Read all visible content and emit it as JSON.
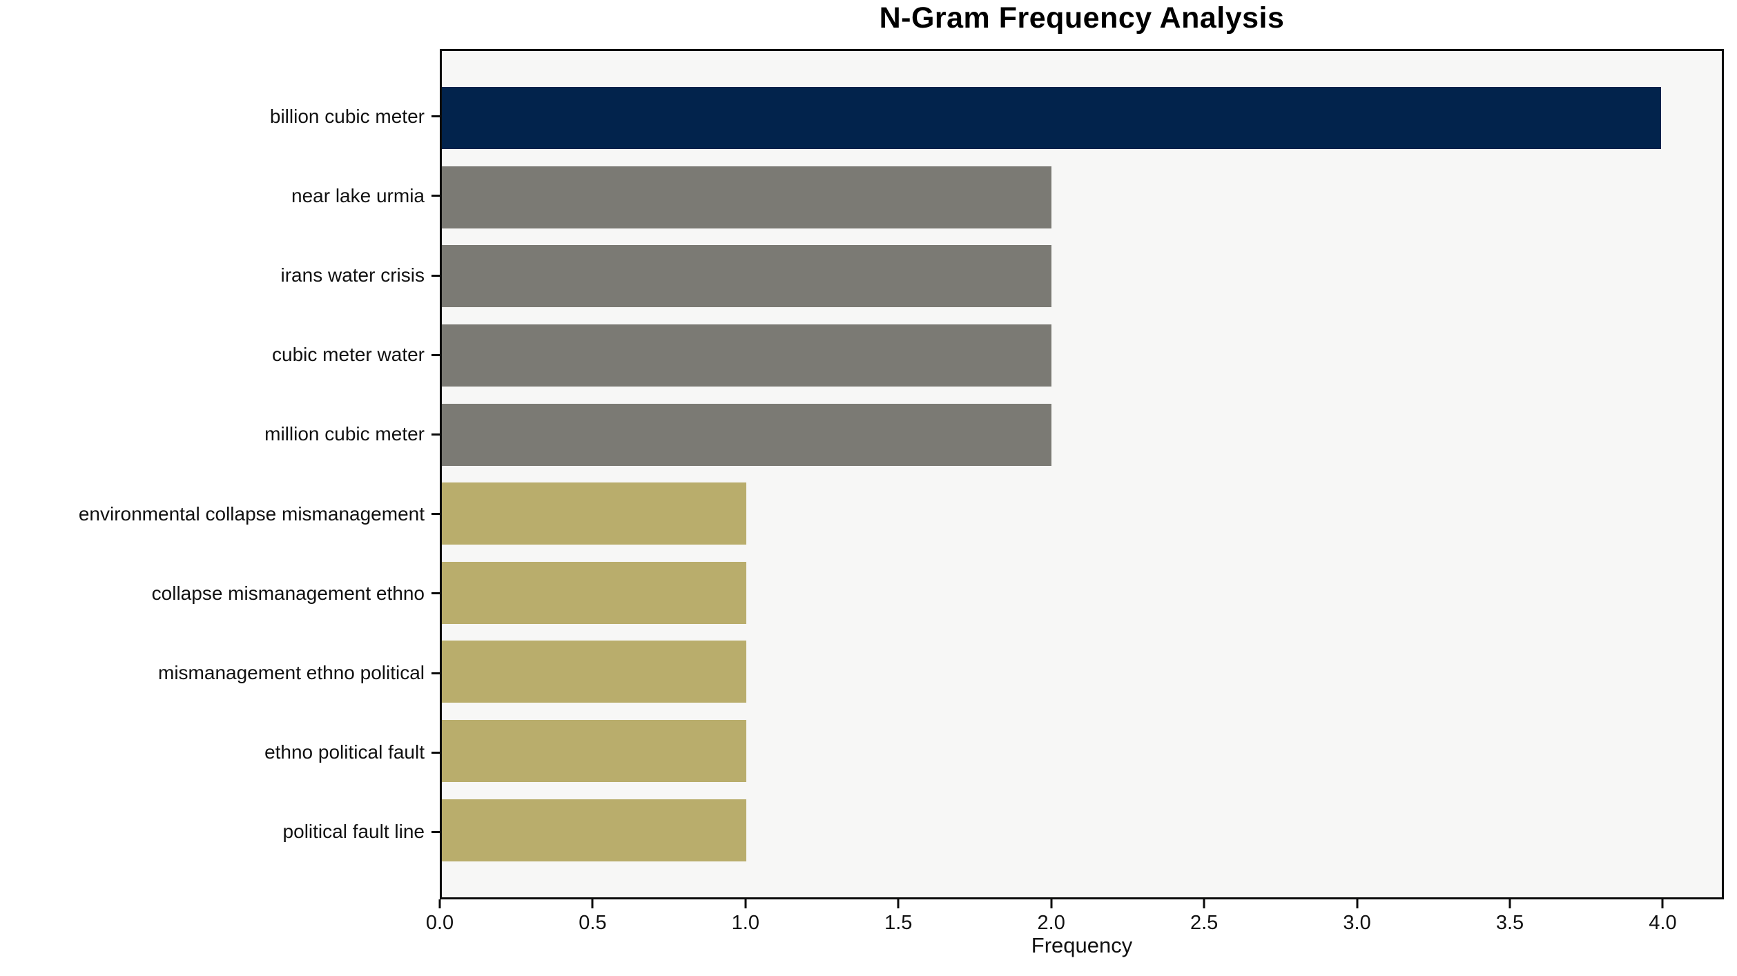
{
  "chart_data": {
    "type": "bar",
    "orientation": "horizontal",
    "title": "N-Gram Frequency Analysis",
    "xlabel": "Frequency",
    "ylabel": "",
    "categories": [
      "billion cubic meter",
      "near lake urmia",
      "irans water crisis",
      "cubic meter water",
      "million cubic meter",
      "environmental collapse mismanagement",
      "collapse mismanagement ethno",
      "mismanagement ethno political",
      "ethno political fault",
      "political fault line"
    ],
    "values": [
      4,
      2,
      2,
      2,
      2,
      1,
      1,
      1,
      1,
      1
    ],
    "bar_colors": [
      "#02234c",
      "#7b7a74",
      "#7b7a74",
      "#7b7a74",
      "#7b7a74",
      "#b9ad6c",
      "#b9ad6c",
      "#b9ad6c",
      "#b9ad6c",
      "#b9ad6c"
    ],
    "xlim": [
      0,
      4.2
    ],
    "x_ticks": [
      0.0,
      0.5,
      1.0,
      1.5,
      2.0,
      2.5,
      3.0,
      3.5,
      4.0
    ],
    "x_tick_labels": [
      "0.0",
      "0.5",
      "1.0",
      "1.5",
      "2.0",
      "2.5",
      "3.0",
      "3.5",
      "4.0"
    ],
    "grid": false,
    "legend": null,
    "colors": {
      "plot_background": "#f7f7f6",
      "figure_background": "#ffffff",
      "spine": "#0b0b0b",
      "text": "#111111"
    }
  }
}
